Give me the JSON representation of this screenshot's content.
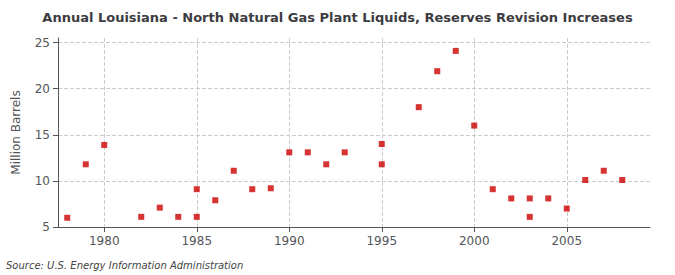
{
  "chart_data": {
    "type": "scatter",
    "title": "Annual Louisiana - North Natural Gas Plant Liquids, Reserves Revision Increases",
    "ylabel": "Million Barrels",
    "annotation": "Source: U.S. Energy Information Administration",
    "color": "#cc0000",
    "marker": "square",
    "grid": true,
    "xlim": [
      1977.5,
      2009.5
    ],
    "ylim": [
      5,
      25.5
    ],
    "xticks": [
      1980,
      1985,
      1990,
      1995,
      2000,
      2005
    ],
    "yticks": [
      5,
      10,
      15,
      20,
      25
    ],
    "x": [
      1978,
      1979,
      1980,
      1982,
      1983,
      1984,
      1985,
      1985,
      1986,
      1987,
      1988,
      1989,
      1990,
      1991,
      1992,
      1993,
      1995,
      1995,
      1997,
      1998,
      1999,
      2000,
      2001,
      2002,
      2003,
      2003,
      2004,
      2005,
      2006,
      2007,
      2008
    ],
    "values": [
      6.0,
      11.8,
      13.9,
      6.1,
      7.1,
      6.1,
      6.1,
      9.1,
      7.9,
      11.1,
      9.1,
      9.2,
      13.1,
      13.1,
      11.8,
      13.1,
      14.0,
      11.8,
      18.0,
      21.9,
      24.1,
      16.0,
      9.1,
      8.1,
      6.1,
      8.1,
      8.1,
      7.0,
      10.1,
      11.1,
      10.1
    ]
  }
}
